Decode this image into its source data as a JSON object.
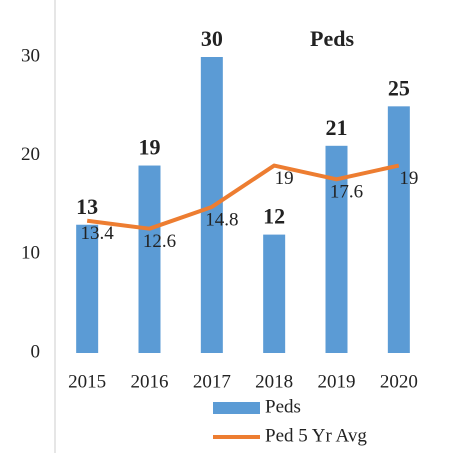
{
  "chart_data": {
    "type": "bar",
    "title": "Peds",
    "categories": [
      "2015",
      "2016",
      "2017",
      "2018",
      "2019",
      "2020"
    ],
    "series": [
      {
        "name": "Peds",
        "type": "bar",
        "color": "#5b9bd5",
        "values": [
          13,
          19,
          30,
          12,
          21,
          25
        ]
      },
      {
        "name": "Ped 5 Yr Avg",
        "type": "line",
        "color": "#ed7d31",
        "values": [
          13.4,
          12.6,
          14.8,
          19,
          17.6,
          19
        ]
      }
    ],
    "ylim": [
      0,
      30
    ],
    "yticks": [
      0,
      10,
      20,
      30
    ],
    "grid": false,
    "legend": "bottom"
  }
}
